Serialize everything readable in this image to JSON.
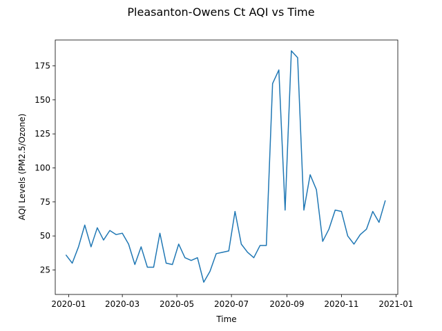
{
  "chart_data": {
    "type": "line",
    "title": "Pleasanton-Owens Ct AQI vs Time",
    "xlabel": "Time",
    "ylabel": "AQI Levels (PM2.5/Ozone)",
    "xlim": [
      "2019-12-17",
      "2021-01-03"
    ],
    "ylim": [
      7,
      194
    ],
    "x_ticks": [
      "2020-01-01",
      "2020-03-01",
      "2020-05-01",
      "2020-07-01",
      "2020-09-01",
      "2020-11-01",
      "2021-01-01"
    ],
    "x_tick_labels": [
      "2020-01",
      "2020-03",
      "2020-05",
      "2020-07",
      "2020-09",
      "2020-11",
      "2021-01"
    ],
    "y_ticks": [
      25,
      50,
      75,
      100,
      125,
      150,
      175
    ],
    "grid": false,
    "series": [
      {
        "color": "#1f77b4",
        "x": [
          "2019-12-29",
          "2020-01-05",
          "2020-01-12",
          "2020-01-19",
          "2020-01-26",
          "2020-02-02",
          "2020-02-09",
          "2020-02-16",
          "2020-02-23",
          "2020-03-01",
          "2020-03-08",
          "2020-03-15",
          "2020-03-22",
          "2020-03-29",
          "2020-04-05",
          "2020-04-12",
          "2020-04-19",
          "2020-04-26",
          "2020-05-03",
          "2020-05-10",
          "2020-05-17",
          "2020-05-24",
          "2020-05-31",
          "2020-06-07",
          "2020-06-14",
          "2020-06-21",
          "2020-06-28",
          "2020-07-05",
          "2020-07-12",
          "2020-07-19",
          "2020-07-26",
          "2020-08-02",
          "2020-08-09",
          "2020-08-16",
          "2020-08-23",
          "2020-08-30",
          "2020-09-06",
          "2020-09-13",
          "2020-09-20",
          "2020-09-27",
          "2020-10-04",
          "2020-10-11",
          "2020-10-18",
          "2020-10-25",
          "2020-11-01",
          "2020-11-08",
          "2020-11-15",
          "2020-11-22",
          "2020-11-29",
          "2020-12-06",
          "2020-12-13",
          "2020-12-20"
        ],
        "values": [
          36,
          30,
          42,
          58,
          42,
          56,
          47,
          54,
          51,
          52,
          44,
          29,
          42,
          27,
          27,
          52,
          30,
          29,
          44,
          34,
          32,
          34,
          16,
          24,
          37,
          38,
          39,
          68,
          44,
          38,
          34,
          43,
          43,
          162,
          172,
          69,
          186,
          181,
          69,
          95,
          84,
          46,
          55,
          69,
          68,
          50,
          44,
          51,
          55,
          68,
          60,
          76
        ]
      }
    ]
  }
}
